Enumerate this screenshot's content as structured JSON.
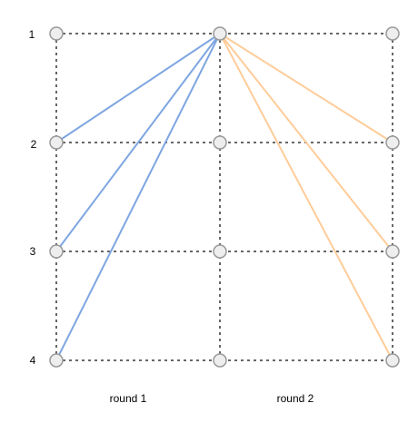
{
  "rows": [
    {
      "id": 1,
      "label": "1"
    },
    {
      "id": 2,
      "label": "2"
    },
    {
      "id": 3,
      "label": "3"
    },
    {
      "id": 4,
      "label": "4"
    }
  ],
  "columns": [
    "c0",
    "c1",
    "c2"
  ],
  "rounds": [
    {
      "label": "round 1"
    },
    {
      "label": "round 2"
    }
  ],
  "edges": [
    {
      "from": [
        "c1",
        1
      ],
      "to": [
        "c0",
        2
      ],
      "round": 0
    },
    {
      "from": [
        "c1",
        1
      ],
      "to": [
        "c0",
        3
      ],
      "round": 0
    },
    {
      "from": [
        "c1",
        1
      ],
      "to": [
        "c0",
        4
      ],
      "round": 0
    },
    {
      "from": [
        "c1",
        1
      ],
      "to": [
        "c2",
        2
      ],
      "round": 1
    },
    {
      "from": [
        "c1",
        1
      ],
      "to": [
        "c2",
        3
      ],
      "round": 1
    },
    {
      "from": [
        "c1",
        1
      ],
      "to": [
        "c2",
        4
      ],
      "round": 1
    }
  ],
  "colors": {
    "round1": "#7ea6e0",
    "round2": "#ffcc99",
    "grid": "#666666",
    "node_fill": "#eeeeee",
    "node_stroke": "#999999"
  }
}
